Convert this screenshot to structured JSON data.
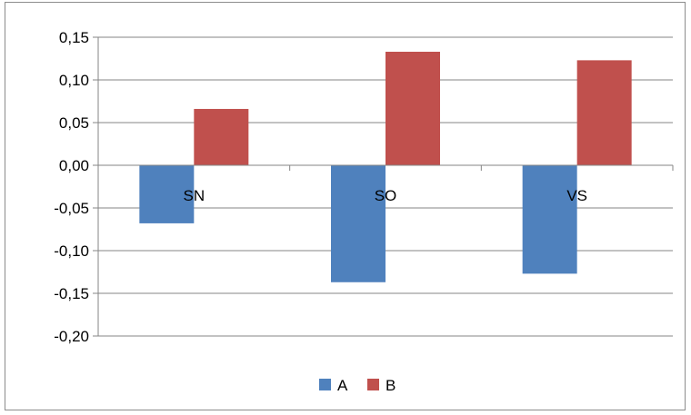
{
  "chart_data": {
    "type": "bar",
    "title": "",
    "xlabel": "",
    "ylabel": "",
    "categories": [
      "SN",
      "SO",
      "VS"
    ],
    "series": [
      {
        "name": "A",
        "values": [
          -0.068,
          -0.137,
          -0.127
        ],
        "color": "#4f81bd"
      },
      {
        "name": "B",
        "values": [
          0.066,
          0.133,
          0.123
        ],
        "color": "#c0504d"
      }
    ],
    "ylim": [
      -0.2,
      0.15
    ],
    "yticks": [
      0.15,
      0.1,
      0.05,
      0.0,
      -0.05,
      -0.1,
      -0.15,
      -0.2
    ],
    "ytick_labels": [
      "0,15",
      "0,10",
      "0,05",
      "0,00",
      "-0,05",
      "-0,10",
      "-0,15",
      "-0,20"
    ],
    "grid": true,
    "legend": "bottom",
    "axis_color": "#868686",
    "grid_color": "#868686"
  }
}
